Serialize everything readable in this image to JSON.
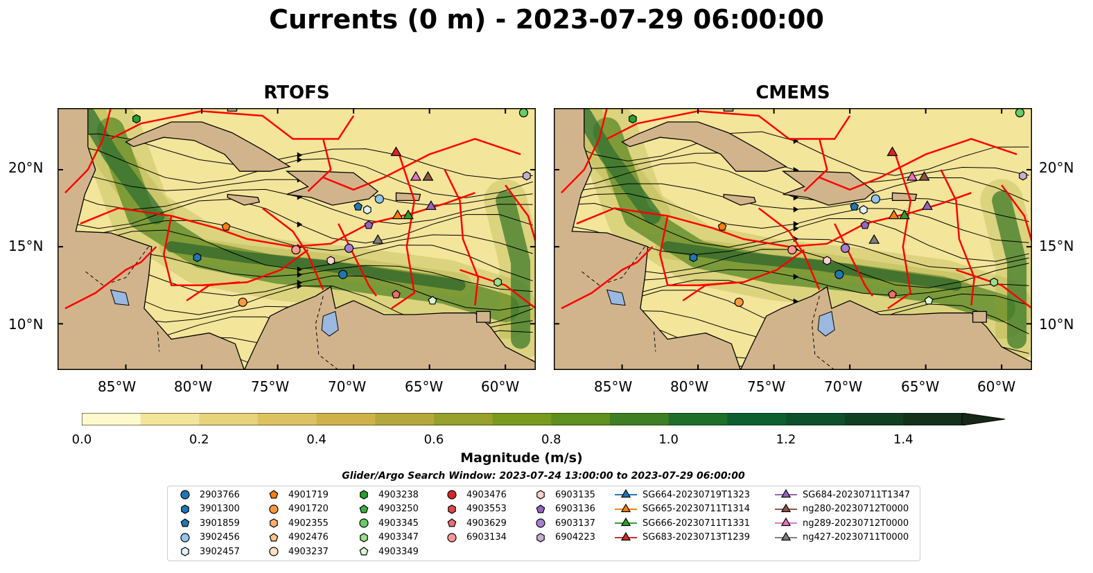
{
  "title": "Currents (0 m) - 2023-07-29 06:00:00",
  "panels": [
    {
      "title": "RTOFS"
    },
    {
      "title": "CMEMS"
    }
  ],
  "lat_labels": [
    "20°N",
    "15°N",
    "10°N"
  ],
  "lon_labels": [
    "85°W",
    "80°W",
    "75°W",
    "70°W",
    "65°W",
    "60°W"
  ],
  "map_extent": {
    "lon": [
      -89.5,
      -58
    ],
    "lat": [
      7,
      24
    ]
  },
  "colors": {
    "land": "#d2b48c",
    "boundary": "#ff0000",
    "lake": "#9ab8e0",
    "colormap": [
      "#fffacd",
      "#f3e59a",
      "#e6d37a",
      "#dcc260",
      "#cfb34a",
      "#b4a83c",
      "#96a02a",
      "#7a9a1e",
      "#5f8f1c",
      "#3f7f24",
      "#1f6e2a",
      "#0e5f30",
      "#0c512b",
      "#113f22",
      "#15301b",
      "#172817"
    ]
  },
  "colorbar": {
    "label": "Magnitude (m/s)",
    "ticks": [
      "0.0",
      "0.2",
      "0.4",
      "0.6",
      "0.8",
      "1.0",
      "1.2",
      "1.4"
    ],
    "min": 0.0,
    "max": 1.5,
    "extend": "max"
  },
  "search_window": "Glider/Argo Search Window: 2023-07-24 13:00:00 to 2023-07-29 06:00:00",
  "legend": {
    "columns": [
      [
        {
          "label": "2903766",
          "marker": "circle",
          "color": "#1f77b4"
        },
        {
          "label": "3901300",
          "marker": "hexagon",
          "color": "#1f77b4"
        },
        {
          "label": "3901859",
          "marker": "pentagon",
          "color": "#1f77b4"
        },
        {
          "label": "3902456",
          "marker": "circle",
          "color": "#8fc5ee"
        },
        {
          "label": "3902457",
          "marker": "hexagon",
          "color": "#dff0fc"
        }
      ],
      [
        {
          "label": "4901719",
          "marker": "pentagon",
          "color": "#ff7f0e"
        },
        {
          "label": "4901720",
          "marker": "circle",
          "color": "#ff9940"
        },
        {
          "label": "4902355",
          "marker": "hexagon",
          "color": "#ffb070"
        },
        {
          "label": "4902476",
          "marker": "pentagon",
          "color": "#ffc58f"
        },
        {
          "label": "4903237",
          "marker": "circle",
          "color": "#ffe0c0"
        }
      ],
      [
        {
          "label": "4903238",
          "marker": "hexagon",
          "color": "#2ca02c"
        },
        {
          "label": "4903250",
          "marker": "pentagon",
          "color": "#3cb043"
        },
        {
          "label": "4903345",
          "marker": "circle",
          "color": "#66cc66"
        },
        {
          "label": "4903347",
          "marker": "hexagon",
          "color": "#98df8a"
        },
        {
          "label": "4903349",
          "marker": "pentagon",
          "color": "#d8f5d0"
        }
      ],
      [
        {
          "label": "4903476",
          "marker": "circle",
          "color": "#d62728"
        },
        {
          "label": "4903553",
          "marker": "hexagon",
          "color": "#e04848"
        },
        {
          "label": "4903629",
          "marker": "pentagon",
          "color": "#ee6e6e"
        },
        {
          "label": "6903134",
          "marker": "circle",
          "color": "#ff9896"
        }
      ],
      [
        {
          "label": "6903135",
          "marker": "hexagon",
          "color": "#ffd0d0"
        },
        {
          "label": "6903136",
          "marker": "pentagon",
          "color": "#9467bd"
        },
        {
          "label": "6903137",
          "marker": "circle",
          "color": "#a77fcc"
        },
        {
          "label": "6904223",
          "marker": "hexagon",
          "color": "#c5b0d5"
        }
      ],
      [
        {
          "label": "SG664-20230719T1323",
          "marker": "triangle",
          "color": "#1f77b4"
        },
        {
          "label": "SG665-20230711T1314",
          "marker": "triangle",
          "color": "#ff7f0e"
        },
        {
          "label": "SG666-20230711T1331",
          "marker": "triangle",
          "color": "#2ca02c"
        },
        {
          "label": "SG683-20230713T1239",
          "marker": "triangle",
          "color": "#d62728"
        }
      ],
      [
        {
          "label": "SG684-20230711T1347",
          "marker": "triangle",
          "color": "#9467bd"
        },
        {
          "label": "ng280-20230712T0000",
          "marker": "triangle",
          "color": "#8c564b"
        },
        {
          "label": "ng289-20230712T0000",
          "marker": "triangle",
          "color": "#e377c2"
        },
        {
          "label": "ng427-20230711T0000",
          "marker": "triangle",
          "color": "#7f7f7f"
        }
      ]
    ]
  }
}
